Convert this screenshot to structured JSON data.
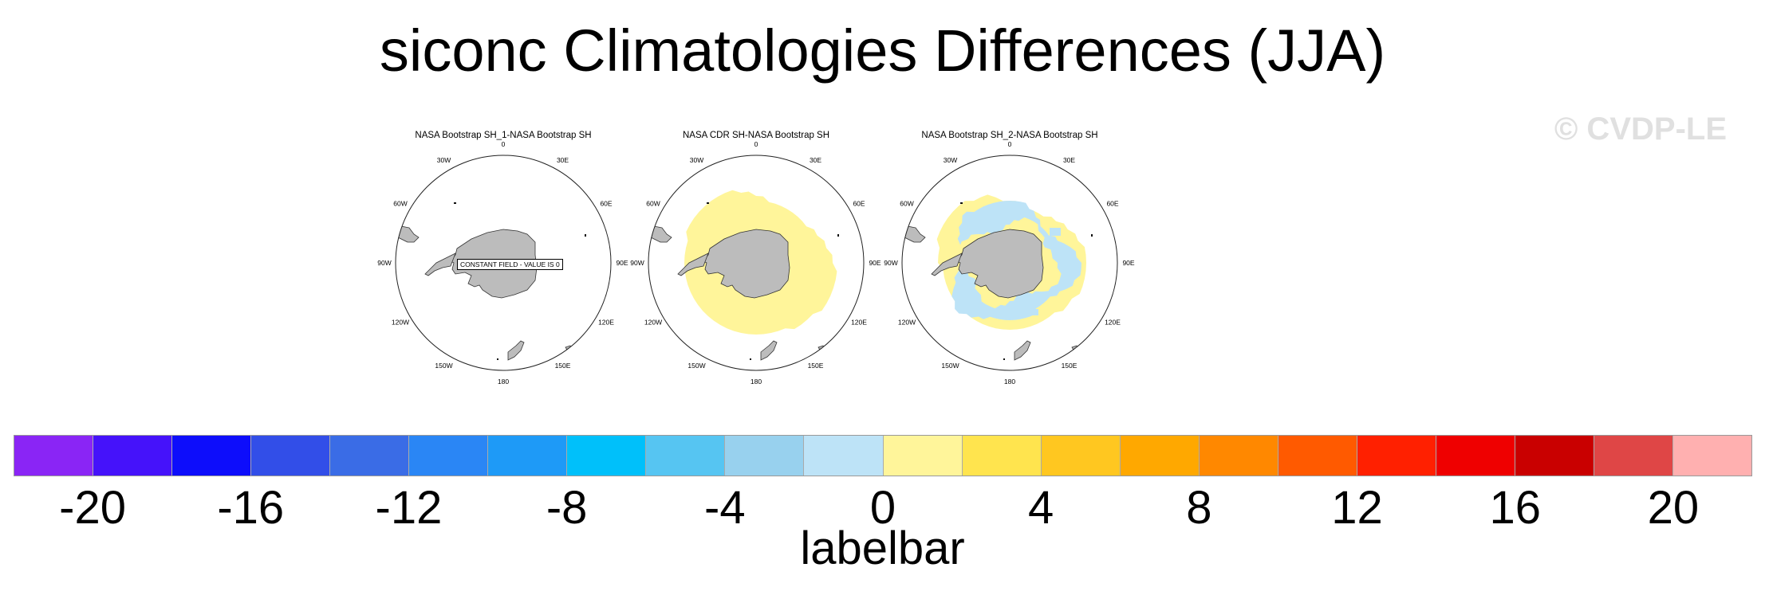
{
  "title": "siconc Climatologies Differences (JJA)",
  "watermark": "© CVDP-LE",
  "chart_data": [
    {
      "type": "heatmap",
      "projection": "south-polar-stereographic",
      "title": "NASA Bootstrap SH_1-NASA Bootstrap SH",
      "annotation": "CONSTANT FIELD - VALUE IS 0",
      "field": "constant",
      "value": 0
    },
    {
      "type": "heatmap",
      "projection": "south-polar-stereographic",
      "title": "NASA CDR SH-NASA Bootstrap SH",
      "field": "ring-positive",
      "dominant_bin": "0 to 2"
    },
    {
      "type": "heatmap",
      "projection": "south-polar-stereographic",
      "title": "NASA Bootstrap SH_2-NASA Bootstrap SH",
      "field": "mixed",
      "dominant_bins": [
        "-2 to 0",
        "0 to 2"
      ]
    }
  ],
  "longitude_labels": [
    "0",
    "30E",
    "60E",
    "90E",
    "120E",
    "150E",
    "180",
    "150W",
    "120W",
    "90W",
    "60W",
    "30W"
  ],
  "labelbar": {
    "title": "labelbar",
    "levels": [
      -20,
      -18,
      -16,
      -14,
      -12,
      -10,
      -8,
      -6,
      -4,
      -2,
      0,
      2,
      4,
      6,
      8,
      10,
      12,
      14,
      16,
      18,
      20
    ],
    "tick_labels": [
      "-20",
      "-16",
      "-12",
      "-8",
      "-4",
      "0",
      "4",
      "8",
      "12",
      "16",
      "20"
    ],
    "colors": [
      "#8a25f5",
      "#4512fa",
      "#0d0dfb",
      "#324ee8",
      "#3a6ce6",
      "#2a86f5",
      "#1e9af7",
      "#00c0fa",
      "#56c5f2",
      "#98d1ee",
      "#bde3f7",
      "#fff59a",
      "#ffe44e",
      "#ffc720",
      "#ffa800",
      "#ff8800",
      "#ff5a00",
      "#ff2000",
      "#ef0000",
      "#c90000",
      "#df4646",
      "#ffb0b0"
    ]
  },
  "colors": {
    "land": "#bcbcbc",
    "coast": "#333333",
    "pos_small": "#fff59a",
    "neg_small": "#bde3f7"
  }
}
